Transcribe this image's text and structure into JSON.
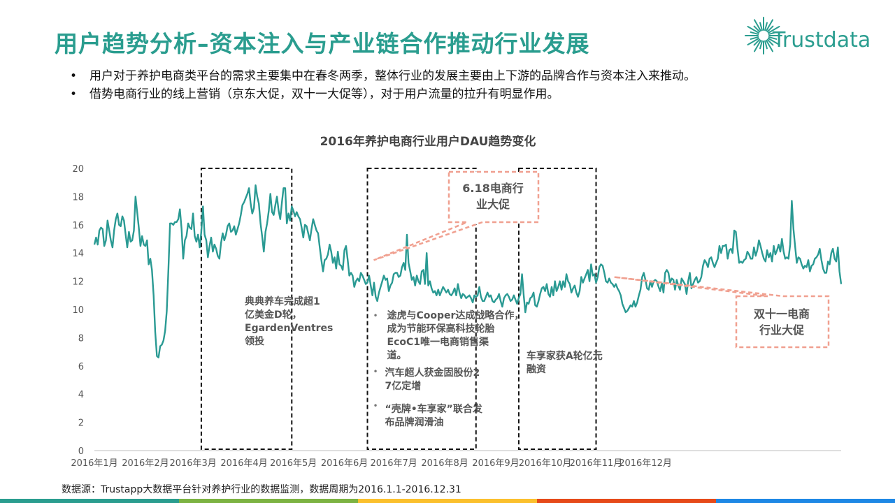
{
  "header": {
    "title": "用户趋势分析–资本注入与产业链合作推动行业发展",
    "logo_text": "Trustdata"
  },
  "bullets": [
    "用户对于养护电商类平台的需求主要集中在春冬两季，整体行业的发展主要由上下游的品牌合作与资本注入来推动。",
    "借势电商行业的线上营销（京东大促，双十一大促等），对于用户流量的拉升有明显作用。"
  ],
  "bullet_symbol": "•",
  "source": "数据源：Trustapp大数据平台针对养护行业的数据监测，数据周期为2016.1.1-2016.12.31",
  "colors": {
    "title": "#2a9d8f",
    "line": "#2a9a93",
    "callout": "#f0a090",
    "footer": [
      "#2a9d8f",
      "#7cb342",
      "#fbc02d",
      "#e64a19",
      "#1e88e5"
    ]
  },
  "chart_data": {
    "type": "line",
    "title": "2016年养护电商行业用户DAU趋势变化",
    "ylim": [
      0,
      20
    ],
    "yticks": [
      0,
      2,
      4,
      6,
      8,
      10,
      12,
      14,
      16,
      18,
      20
    ],
    "x_tick_labels": [
      "2016年1月",
      "2016年2月",
      "2016年3月",
      "2016年4月",
      "2016年5月",
      "2016年6月",
      "2016年7月",
      "2016年8月",
      "2016年9月",
      "2016年10月",
      "2016年11月",
      "2016年12月"
    ],
    "grid": false,
    "series": [
      {
        "name": "",
        "start": "2016-01-01",
        "values": [
          14.6,
          15.1,
          14.6,
          15.6,
          15.8,
          15.7,
          14.5,
          14.9,
          16.3,
          15.6,
          14.9,
          14.4,
          15.6,
          16.4,
          16.8,
          16.0,
          15.9,
          16.6,
          16.3,
          15.3,
          14.4,
          15.5,
          14.8,
          14.9,
          15.6,
          18.0,
          16.9,
          15.8,
          14.5,
          15.2,
          14.6,
          14.5,
          14.9,
          13.2,
          13.6,
          12.8,
          11.0,
          8.4,
          6.7,
          6.6,
          7.4,
          7.5,
          7.8,
          8.5,
          9.9,
          12.9,
          16.1,
          16.1,
          16.0,
          16.2,
          16.2,
          16.4,
          17.1,
          15.7,
          13.6,
          14.9,
          15.2,
          16.1,
          15.8,
          15.7,
          16.8,
          15.2,
          14.8,
          15.3,
          14.4,
          15.5,
          17.3,
          15.3,
          14.9,
          13.7,
          14.5,
          15.1,
          14.1,
          14.6,
          14.3,
          13.8,
          13.6,
          14.7,
          15.4,
          14.9,
          15.3,
          15.9,
          16.1,
          15.5,
          15.6,
          15.9,
          15.3,
          15.7,
          16.1,
          16.7,
          17.4,
          17.6,
          17.9,
          18.2,
          18.6,
          17.5,
          16.8,
          17.2,
          18.8,
          18.0,
          17.5,
          16.1,
          15.2,
          14.1,
          15.5,
          16.1,
          17.0,
          18.2,
          16.9,
          16.7,
          17.4,
          18.0,
          17.0,
          16.4,
          17.6,
          18.6,
          18.6,
          16.1,
          16.8,
          16.3,
          17.3,
          17.0,
          16.6,
          16.9,
          16.6,
          16.4,
          15.8,
          15.1,
          16.0,
          15.9,
          15.4,
          14.9,
          15.7,
          16.4,
          16.0,
          15.6,
          15.4,
          14.4,
          13.5,
          12.7,
          13.5,
          13.6,
          13.9,
          14.6,
          14.1,
          13.3,
          13.7,
          12.9,
          14.1,
          13.2,
          13.1,
          12.8,
          14.2,
          14.5,
          13.5,
          12.4,
          12.6,
          12.4,
          11.6,
          12.0,
          12.2,
          12.0,
          12.6,
          12.4,
          12.1,
          11.8,
          11.9,
          12.4,
          11.7,
          11.0,
          11.9,
          10.9,
          10.6,
          11.2,
          11.6,
          12.0,
          12.4,
          12.1,
          12.2,
          11.3,
          11.7,
          11.9,
          12.5,
          12.6,
          12.6,
          12.3,
          12.4,
          13.0,
          13.3,
          12.8,
          15.3,
          13.3,
          12.7,
          12.1,
          12.3,
          11.7,
          12.4,
          12.0,
          11.8,
          12.7,
          12.8,
          11.8,
          14.0,
          11.7,
          12.0,
          11.5,
          11.2,
          11.3,
          11.0,
          11.4,
          11.0,
          11.3,
          11.6,
          11.4,
          11.2,
          11.4,
          11.1,
          11.0,
          11.2,
          11.5,
          11.0,
          11.8,
          11.2,
          10.8,
          11.1,
          11.0,
          10.8,
          10.9,
          11.0,
          10.8,
          10.5,
          11.0,
          10.9,
          11.0,
          11.6,
          10.9,
          10.6,
          10.6,
          10.9,
          11.2,
          10.9,
          11.0,
          10.6,
          10.5,
          10.7,
          10.8,
          11.1,
          10.6,
          10.2,
          10.8,
          11.0,
          11.1,
          10.9,
          10.6,
          10.7,
          11.0,
          10.7,
          10.4,
          10.8,
          11.1,
          12.5,
          11.0,
          9.8,
          10.5,
          10.4,
          10.8,
          10.9,
          11.2,
          10.3,
          10.2,
          10.6,
          11.1,
          11.5,
          11.6,
          11.3,
          11.8,
          11.1,
          10.9,
          11.6,
          11.0,
          12.0,
          11.3,
          11.6,
          12.0,
          11.4,
          12.0,
          11.6,
          12.5,
          12.0,
          11.8,
          11.2,
          11.5,
          11.7,
          11.2,
          10.9,
          11.3,
          12.3,
          11.9,
          12.2,
          12.5,
          12.8,
          12.0,
          13.2,
          12.4,
          12.5,
          11.9,
          12.3,
          13.0,
          13.2,
          13.1,
          12.6,
          12.0,
          11.9,
          12.2,
          11.9,
          11.8,
          11.6,
          11.8,
          11.5,
          11.3,
          11.0,
          10.4,
          10.1,
          9.8,
          9.9,
          10.1,
          10.3,
          10.2,
          10.6,
          10.2,
          10.5,
          11.0,
          11.4,
          12.3,
          12.6,
          12.1,
          11.5,
          11.4,
          12.0,
          11.6,
          12.0,
          12.1,
          12.0,
          11.6,
          11.3,
          11.9,
          11.2,
          12.6,
          12.8,
          12.6,
          11.9,
          12.2,
          12.1,
          11.4,
          12.1,
          11.7,
          11.4,
          12.2,
          12.0,
          11.8,
          11.1,
          12.0,
          12.6,
          11.5,
          11.8,
          12.1,
          12.3,
          11.9,
          12.0,
          12.3,
          13.1,
          13.5,
          13.3,
          13.0,
          13.6,
          13.7,
          13.3,
          13.0,
          13.3,
          13.6,
          14.5,
          14.0,
          14.5,
          14.5,
          14.6,
          13.6,
          14.2,
          14.3,
          14.0,
          15.6,
          15.5,
          14.3,
          13.3,
          13.4,
          13.3,
          13.5,
          13.6,
          14.1,
          13.9,
          13.6,
          13.6,
          14.4,
          13.8,
          14.2,
          14.9,
          14.5,
          14.0,
          13.6,
          13.4,
          14.2,
          13.7,
          14.0,
          13.4,
          14.5,
          13.9,
          14.2,
          14.6,
          14.1,
          15.0,
          14.1,
          13.6,
          13.7,
          13.6,
          14.6,
          17.7,
          15.7,
          14.5,
          13.3,
          13.7,
          13.6,
          13.2,
          12.9,
          13.1,
          13.0,
          13.5,
          12.7,
          13.1,
          13.2,
          13.6,
          13.7,
          13.9,
          14.3,
          13.5,
          12.9,
          12.6,
          12.6,
          13.4,
          13.2,
          14.0,
          14.3,
          13.6,
          13.4,
          14.4,
          12.7,
          11.8
        ]
      }
    ],
    "event_boxes": [
      {
        "label": "典典养车完成超1亿美金D轮，EgardenVentres领投",
        "from": "2016-03-06",
        "to": "2016-04-30"
      },
      {
        "items": [
          "途虎与Cooper达成战略合作，成为节能环保高科技轮胎EcoC1唯一电商销售渠道。",
          "汽车超人获金固股份27亿定增",
          "“壳牌•车享家”联合发布品牌润滑油"
        ],
        "from": "2016-06-15",
        "to": "2016-08-20"
      },
      {
        "label": "车享家获A轮亿元融资",
        "from": "2016-09-15",
        "to": "2016-11-01"
      }
    ],
    "callouts": [
      {
        "text": "6.18电商行业大促",
        "point_date": "2016-06-18",
        "point_value": 13.2
      },
      {
        "text": "双十一电商行业大促",
        "point_date": "2016-11-11",
        "point_value": 12.5
      }
    ]
  }
}
